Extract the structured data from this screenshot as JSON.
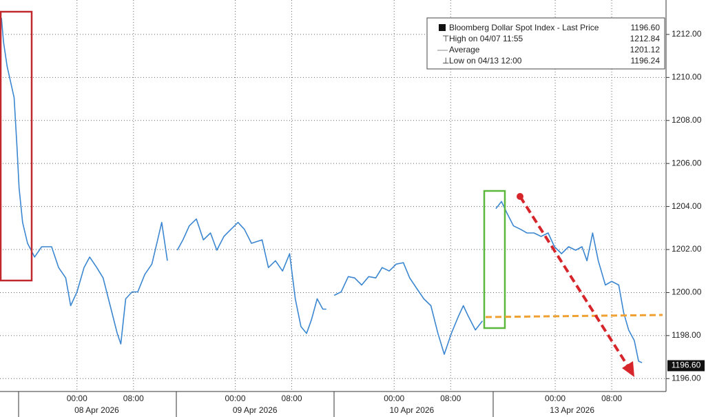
{
  "chart_data": {
    "type": "line",
    "xlim": [
      0,
      94.1
    ],
    "ylim": [
      1195.4,
      1213.6
    ],
    "yticks": [
      {
        "value": 1196,
        "label": "1196.00"
      },
      {
        "value": 1198,
        "label": "1198.00"
      },
      {
        "value": 1200,
        "label": "1200.00"
      },
      {
        "value": 1202,
        "label": "1202.00"
      },
      {
        "value": 1204,
        "label": "1204.00"
      },
      {
        "value": 1206,
        "label": "1206.00"
      },
      {
        "value": 1208,
        "label": "1208.00"
      },
      {
        "value": 1210,
        "label": "1210.00"
      },
      {
        "value": 1212,
        "label": "1212.00"
      }
    ],
    "xticks": [
      {
        "value": 10.9,
        "label": "00:00"
      },
      {
        "value": 18.9,
        "label": "08:00"
      },
      {
        "value": 33.3,
        "label": "00:00"
      },
      {
        "value": 41.3,
        "label": "08:00"
      },
      {
        "value": 55.8,
        "label": "00:00"
      },
      {
        "value": 63.8,
        "label": "08:00"
      },
      {
        "value": 78.6,
        "label": "00:00"
      },
      {
        "value": 86.6,
        "label": "08:00"
      }
    ],
    "date_labels": [
      {
        "value": 13.7,
        "label": "08 Apr 2026"
      },
      {
        "value": 36.1,
        "label": "09 Apr 2026"
      },
      {
        "value": 58.3,
        "label": "10 Apr 2026"
      },
      {
        "value": 81.0,
        "label": "13 Apr 2026"
      }
    ],
    "grid": true,
    "series": [
      {
        "name": "Bloomberg Dollar Spot Index - Last Price",
        "color": "#3a86d1",
        "x": [
          0.2,
          0.5,
          1.0,
          2.0,
          2.4,
          2.7,
          3.2,
          3.9,
          4.9,
          5.9,
          7.3,
          8.3,
          9.3,
          10.0,
          10.9,
          11.9,
          12.7,
          13.7,
          14.6,
          15.6,
          16.6,
          17.1,
          17.8,
          18.7,
          19.5,
          20.5,
          21.5,
          22.2,
          22.9,
          23.7,
          24.4,
          25.1,
          25.9,
          26.8,
          27.8,
          28.8,
          29.8,
          30.7,
          31.7,
          32.7,
          33.7,
          34.6,
          35.6,
          37.1,
          38.0,
          39.0,
          40.0,
          41.0,
          41.8,
          42.6,
          43.4,
          44.1,
          44.9,
          45.7,
          46.2,
          46.8,
          47.3,
          48.3,
          49.3,
          50.2,
          51.2,
          52.2,
          53.2,
          54.1,
          55.1,
          56.1,
          57.1,
          58.0,
          59.0,
          60.0,
          61.0,
          62.0,
          62.9,
          63.9,
          64.9,
          65.6,
          66.3,
          67.3,
          68.3,
          69.3,
          70.2,
          71.0,
          71.7,
          72.7,
          73.7,
          74.6,
          75.6,
          76.6,
          77.6,
          78.5,
          79.5,
          80.5,
          81.5,
          82.4,
          83.1,
          83.9,
          84.7,
          85.7,
          86.6,
          87.6,
          88.3,
          89.0,
          89.8,
          90.4,
          90.9
        ],
        "values": [
          1212.77,
          1211.65,
          1210.52,
          1209.06,
          1206.8,
          1204.87,
          1203.26,
          1202.29,
          1201.65,
          1202.13,
          1202.13,
          1201.16,
          1200.68,
          1199.39,
          1200.03,
          1201.16,
          1201.65,
          1201.16,
          1200.68,
          1199.39,
          1198.1,
          1197.61,
          1199.71,
          1200.03,
          1200.03,
          1200.84,
          1201.32,
          1202.29,
          1203.26,
          1201.48,
          null,
          1201.97,
          1202.45,
          1203.1,
          1203.42,
          1202.45,
          1202.77,
          1201.97,
          1202.61,
          1202.94,
          1203.26,
          1202.94,
          1202.29,
          1202.45,
          1201.16,
          1201.48,
          1201.0,
          1201.81,
          1199.71,
          1198.42,
          1198.1,
          1198.74,
          1199.71,
          1199.23,
          1199.23,
          null,
          1199.87,
          1200.03,
          1200.74,
          1200.68,
          1200.35,
          1200.74,
          1200.68,
          1201.16,
          1201.0,
          1201.32,
          1201.39,
          1200.68,
          1200.19,
          1199.71,
          1199.39,
          1198.1,
          1197.13,
          1198.1,
          1198.9,
          1199.39,
          1198.9,
          1198.26,
          1198.68,
          null,
          1203.9,
          1204.23,
          1203.74,
          1203.1,
          1202.94,
          1202.77,
          1202.77,
          1202.61,
          1202.77,
          1202.13,
          1201.81,
          1202.13,
          1201.97,
          1202.13,
          1201.48,
          1202.77,
          1201.48,
          1200.35,
          1200.52,
          1200.35,
          1199.06,
          1198.26,
          1197.77,
          1196.81,
          1196.74
        ]
      }
    ],
    "last_price": {
      "value": 1196.6,
      "label": "1196.60"
    },
    "legend": [
      {
        "label": "Bloomberg Dollar Spot Index - Last Price",
        "value": "1196.60"
      },
      {
        "label": "High on 04/07 11:55",
        "value": "1212.84"
      },
      {
        "label": "Average",
        "value": "1201.12"
      },
      {
        "label": "Low on 04/13 12:00",
        "value": "1196.24"
      }
    ]
  }
}
